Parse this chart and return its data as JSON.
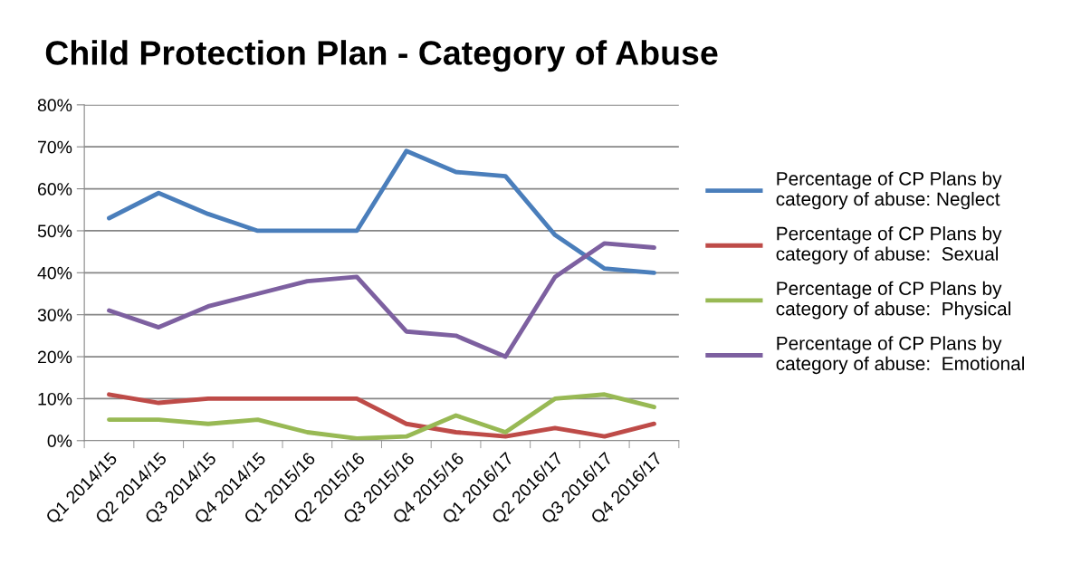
{
  "chart_data": {
    "type": "line",
    "title": "Child Protection Plan - Category of Abuse",
    "categories": [
      "Q1 2014/15",
      "Q2 2014/15",
      "Q3 2014/15",
      "Q4 2014/15",
      "Q1 2015/16",
      "Q2 2015/16",
      "Q3 2015/16",
      "Q4 2015/16",
      "Q1 2016/17",
      "Q2 2016/17",
      "Q3 2016/17",
      "Q4 2016/17"
    ],
    "series": [
      {
        "name": "Percentage of CP Plans by category of abuse: Neglect",
        "color": "#4a7ebb",
        "values": [
          53,
          59,
          54,
          50,
          50,
          50,
          69,
          64,
          63,
          49,
          41,
          40
        ]
      },
      {
        "name": "Percentage of CP Plans by category of abuse:  Sexual",
        "color": "#be4b48",
        "values": [
          11,
          9,
          10,
          10,
          10,
          10,
          4,
          2,
          1,
          3,
          1,
          4
        ]
      },
      {
        "name": "Percentage of CP Plans by category of abuse:  Physical",
        "color": "#98b954",
        "values": [
          5,
          5,
          4,
          5,
          2,
          0.5,
          1,
          6,
          2,
          10,
          11,
          8
        ]
      },
      {
        "name": "Percentage of CP Plans by category of abuse:  Emotional",
        "color": "#7d60a0",
        "values": [
          31,
          27,
          32,
          35,
          38,
          39,
          26,
          25,
          20,
          39,
          47,
          46
        ]
      }
    ],
    "ylim": [
      0,
      80
    ],
    "yticks": [
      {
        "value": 0,
        "label": "0%"
      },
      {
        "value": 10,
        "label": "10%"
      },
      {
        "value": 20,
        "label": "20%"
      },
      {
        "value": 30,
        "label": "30%"
      },
      {
        "value": 40,
        "label": "40%"
      },
      {
        "value": 50,
        "label": "50%"
      },
      {
        "value": 60,
        "label": "60%"
      },
      {
        "value": 70,
        "label": "70%"
      },
      {
        "value": 80,
        "label": "80%"
      }
    ],
    "grid": "y",
    "legend": "right",
    "marker": "none",
    "line_style": "solid"
  }
}
